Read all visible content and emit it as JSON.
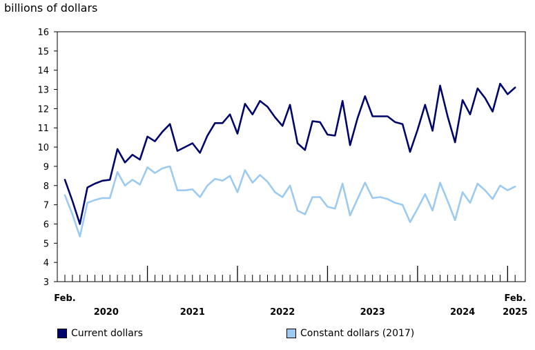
{
  "chart_data": {
    "type": "line",
    "ylabel": "billions of dollars",
    "ylim": [
      3,
      16
    ],
    "yticks": [
      3,
      4,
      5,
      6,
      7,
      8,
      9,
      10,
      11,
      12,
      13,
      14,
      15,
      16
    ],
    "x_start": "Feb. 2020",
    "x_end": "Feb. 2025",
    "x_start_label": "Feb.",
    "x_end_label": "Feb.",
    "year_labels": [
      "2020",
      "2021",
      "2022",
      "2023",
      "2024",
      "2025"
    ],
    "grid": false,
    "legend_position": "bottom",
    "series": [
      {
        "name": "Current dollars",
        "color": "#00056b",
        "values": [
          8.3,
          7.2,
          6.0,
          7.9,
          8.1,
          8.25,
          8.3,
          9.9,
          9.2,
          9.6,
          9.35,
          10.55,
          10.3,
          10.8,
          11.2,
          9.8,
          10.0,
          10.2,
          9.7,
          10.6,
          11.25,
          11.25,
          11.7,
          10.7,
          12.25,
          11.7,
          12.4,
          12.1,
          11.55,
          11.1,
          12.2,
          10.2,
          9.85,
          11.35,
          11.3,
          10.65,
          10.6,
          12.4,
          10.1,
          11.5,
          12.65,
          11.6,
          11.6,
          11.6,
          11.3,
          11.2,
          9.75,
          10.9,
          12.2,
          10.85,
          13.2,
          11.6,
          10.25,
          12.45,
          11.7,
          13.05,
          12.55,
          11.85,
          13.3,
          12.75,
          13.1
        ]
      },
      {
        "name": "Constant dollars (2017)",
        "color": "#9ccaf0",
        "values": [
          7.5,
          6.5,
          5.35,
          7.1,
          7.25,
          7.35,
          7.35,
          8.7,
          8.0,
          8.3,
          8.05,
          8.95,
          8.65,
          8.9,
          9.0,
          7.75,
          7.75,
          7.8,
          7.4,
          8.0,
          8.35,
          8.25,
          8.5,
          7.65,
          8.8,
          8.15,
          8.55,
          8.2,
          7.65,
          7.4,
          8.0,
          6.7,
          6.5,
          7.4,
          7.4,
          6.9,
          6.8,
          8.1,
          6.45,
          7.3,
          8.15,
          7.35,
          7.4,
          7.3,
          7.1,
          7.0,
          6.1,
          6.8,
          7.55,
          6.7,
          8.15,
          7.2,
          6.2,
          7.65,
          7.1,
          8.1,
          7.75,
          7.3,
          8.0,
          7.75,
          7.95
        ]
      }
    ]
  }
}
